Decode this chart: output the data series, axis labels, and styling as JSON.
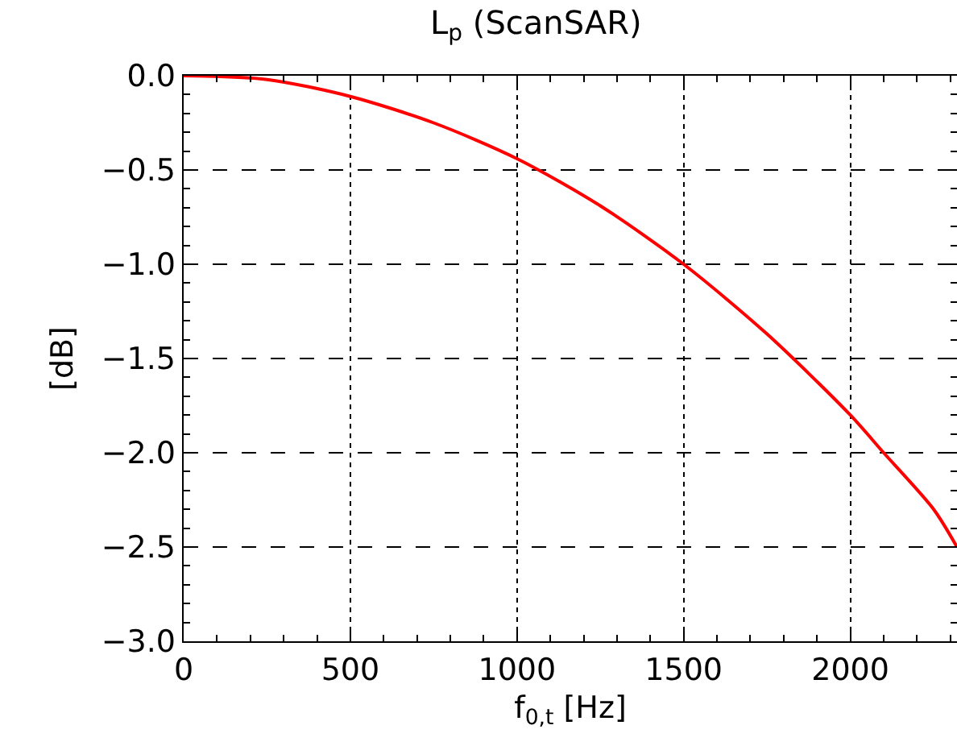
{
  "chart_data": {
    "type": "line",
    "title": "L$_{p}$ (ScanSAR)",
    "xlabel": "f$_{0,t}$ [Hz]",
    "ylabel": "[dB]",
    "x": [
      0,
      250,
      500,
      750,
      1000,
      1250,
      1500,
      1750,
      2000,
      2100,
      2250,
      2320
    ],
    "series": [
      {
        "color": "#ff0000",
        "values": [
          0,
          -0.02,
          -0.11,
          -0.25,
          -0.44,
          -0.69,
          -1.0,
          -1.37,
          -1.8,
          -2.0,
          -2.3,
          -2.5
        ]
      }
    ],
    "xlim": [
      0,
      2320
    ],
    "ylim": [
      -3,
      0
    ],
    "xticks": [
      0,
      500,
      1000,
      1500,
      2000
    ],
    "yticks": [
      {
        "value": 0,
        "label": "0.0"
      },
      {
        "value": -0.5,
        "label": "−0.5"
      },
      {
        "value": -1,
        "label": "−1.0"
      },
      {
        "value": -1.5,
        "label": "−1.5"
      },
      {
        "value": -2,
        "label": "−2.0"
      },
      {
        "value": -2.5,
        "label": "−2.5"
      },
      {
        "value": -3,
        "label": "−3.0"
      }
    ],
    "grid": true,
    "marker": "none",
    "line_style": "solid"
  }
}
